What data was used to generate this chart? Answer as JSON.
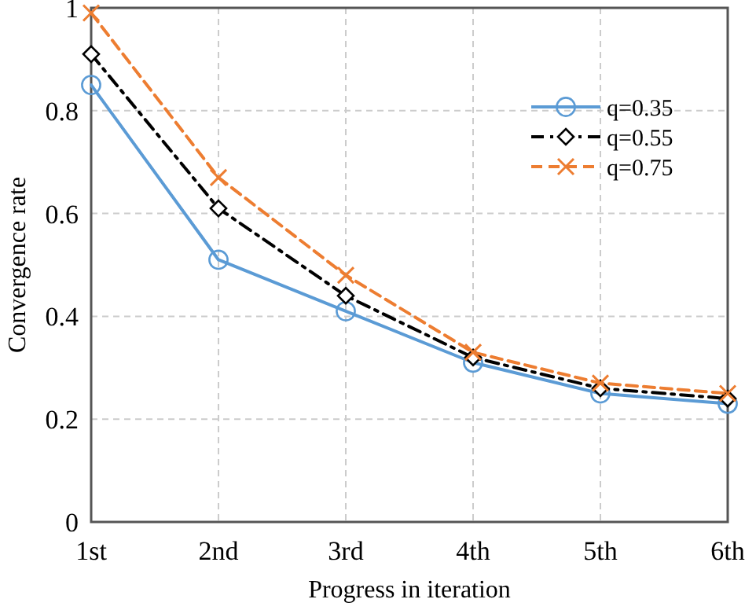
{
  "chart_data": {
    "type": "line",
    "xlabel": "Progress in iteration",
    "ylabel": "Convergence rate",
    "categories": [
      "1st",
      "2nd",
      "3rd",
      "4th",
      "5th",
      "6th"
    ],
    "ylim": [
      0,
      1
    ],
    "yticks": [
      0,
      0.2,
      0.4,
      0.6,
      0.8,
      1
    ],
    "grid": true,
    "legend": "top right",
    "series": [
      {
        "name": "q=0.35",
        "color": "#5b9bd5",
        "marker": "circle",
        "line_style": "solid",
        "values": [
          0.85,
          0.51,
          0.41,
          0.31,
          0.25,
          0.23
        ]
      },
      {
        "name": "q=0.55",
        "color": "#000000",
        "marker": "diamond",
        "line_style": "dashdot",
        "values": [
          0.91,
          0.61,
          0.44,
          0.32,
          0.26,
          0.24
        ]
      },
      {
        "name": "q=0.75",
        "color": "#ed7d31",
        "marker": "cross",
        "line_style": "dashed",
        "values": [
          0.99,
          0.67,
          0.48,
          0.33,
          0.27,
          0.25
        ]
      }
    ]
  }
}
